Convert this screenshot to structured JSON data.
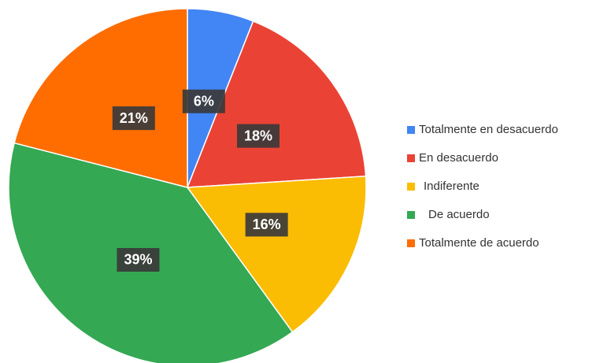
{
  "chart_data": {
    "type": "pie",
    "categories": [
      "Totalmente en desacuerdo",
      "En desacuerdo",
      "Indiferente",
      "De acuerdo",
      "Totalmente de acuerdo"
    ],
    "values": [
      6,
      18,
      16,
      39,
      21
    ],
    "value_labels": [
      "6%",
      "18%",
      "16%",
      "39%",
      "21%"
    ],
    "colors": [
      "#4285f4",
      "#ea4335",
      "#fbbc04",
      "#34a853",
      "#ff6d01"
    ],
    "legend": "right"
  }
}
